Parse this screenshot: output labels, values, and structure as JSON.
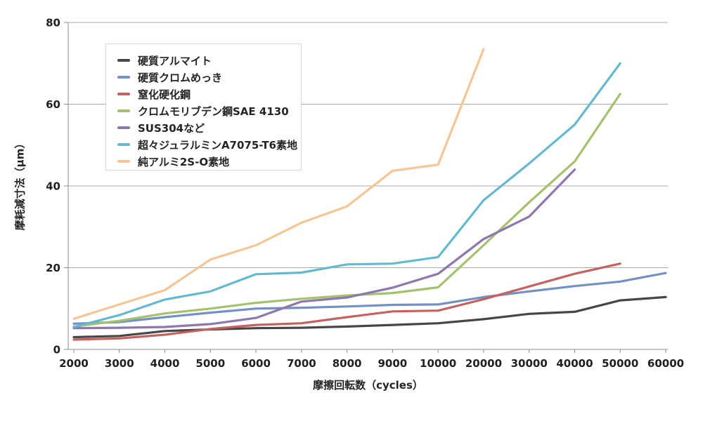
{
  "chart_data": {
    "type": "line",
    "title": "",
    "xlabel": "摩擦回転数（cycles）",
    "ylabel": "摩耗減寸法（μm）",
    "ylim": [
      0,
      80
    ],
    "yticks": [
      0,
      20,
      40,
      60,
      80
    ],
    "grid": "horizontal-only",
    "legend_position": "inside-upper-left",
    "categories": [
      "2000",
      "3000",
      "4000",
      "5000",
      "6000",
      "7000",
      "8000",
      "9000",
      "10000",
      "20000",
      "30000",
      "40000",
      "50000",
      "60000"
    ],
    "series": [
      {
        "name": "硬質アルマイト",
        "color": "#464646",
        "values": [
          3.0,
          3.3,
          4.5,
          4.9,
          5.2,
          5.3,
          5.6,
          6.0,
          6.4,
          7.4,
          8.7,
          9.2,
          12.0,
          12.8
        ]
      },
      {
        "name": "硬質クロムめっき",
        "color": "#7391C6",
        "values": [
          6.3,
          6.7,
          7.9,
          9.0,
          10.0,
          10.2,
          10.5,
          10.9,
          11.0,
          12.8,
          14.2,
          15.5,
          16.6,
          18.7
        ]
      },
      {
        "name": "窒化硬化鋼",
        "color": "#C5615E",
        "values": [
          2.4,
          2.7,
          3.6,
          5.0,
          6.0,
          6.4,
          7.9,
          9.3,
          9.5,
          12.3,
          15.4,
          18.5,
          21.0,
          null
        ]
      },
      {
        "name": "クロムモリブデン鋼SAE 4130",
        "color": "#A4C16E",
        "values": [
          5.6,
          7.0,
          8.8,
          10.0,
          11.4,
          12.4,
          13.2,
          13.8,
          15.2,
          25.5,
          36.0,
          46.0,
          62.5,
          null
        ]
      },
      {
        "name": "SUS304など",
        "color": "#8E76AE",
        "values": [
          5.2,
          5.3,
          5.5,
          6.2,
          7.7,
          11.7,
          12.7,
          15.1,
          18.5,
          27.0,
          32.5,
          44.0,
          null,
          null
        ]
      },
      {
        "name": "超々ジュラルミンA7075-T6素地",
        "color": "#64B9D1",
        "values": [
          5.5,
          8.4,
          12.2,
          14.2,
          18.4,
          18.8,
          20.8,
          21.0,
          22.6,
          36.5,
          45.5,
          55.0,
          70.0,
          null
        ]
      },
      {
        "name": "純アルミ2S-O素地",
        "color": "#F7C493",
        "values": [
          7.5,
          11.0,
          14.5,
          22.0,
          25.5,
          31.0,
          35.0,
          43.7,
          45.2,
          73.5,
          null,
          null,
          null,
          null
        ]
      }
    ]
  }
}
